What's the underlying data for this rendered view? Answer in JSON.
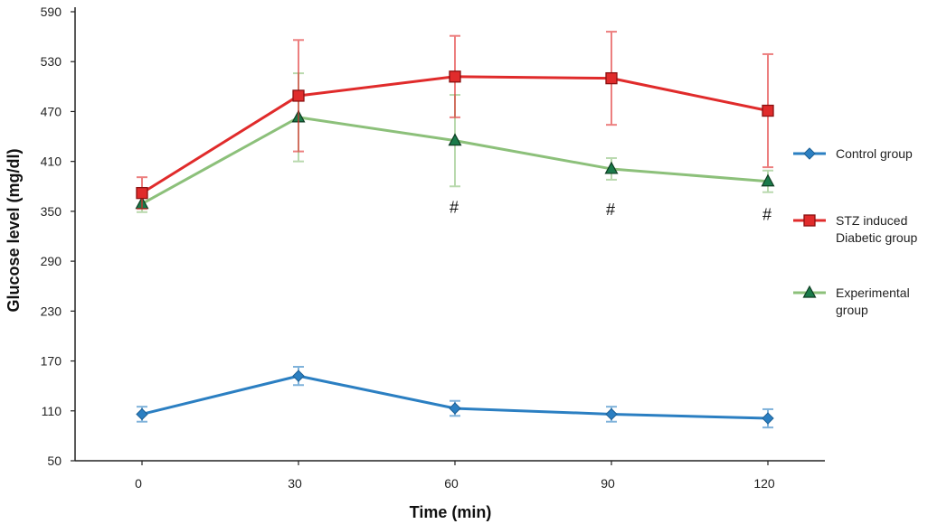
{
  "chart_data": {
    "type": "line",
    "title": "",
    "xlabel": "Time (min)",
    "ylabel": "Glucose level (mg/dl)",
    "x": [
      0,
      30,
      60,
      90,
      120
    ],
    "x_tick_labels": [
      "0",
      "30",
      "60",
      "90",
      "120"
    ],
    "ylim": [
      50,
      590
    ],
    "y_ticks": [
      50,
      110,
      170,
      230,
      290,
      350,
      410,
      470,
      530,
      590
    ],
    "y_tick_labels": [
      "50",
      "110",
      "170",
      "230",
      "290",
      "350",
      "410",
      "470",
      "530",
      "590"
    ],
    "grid": false,
    "legend_position": "right",
    "series": [
      {
        "name": "Control group",
        "name_lines": [
          "Control group"
        ],
        "marker": "diamond",
        "color": "#2b7fc2",
        "values": [
          106,
          152,
          113,
          106,
          101
        ],
        "errors": [
          9,
          11,
          9,
          9,
          11
        ]
      },
      {
        "name": "STZ induced Diabetic group",
        "name_lines": [
          "STZ induced",
          "Diabetic group"
        ],
        "marker": "square",
        "color": "#e02b2b",
        "values": [
          372,
          489,
          512,
          510,
          471
        ],
        "errors": [
          19,
          67,
          49,
          56,
          68
        ]
      },
      {
        "name": "Experimental group",
        "name_lines": [
          "Experimental",
          "group"
        ],
        "marker": "triangle",
        "color": "#8cc07a",
        "values": [
          359,
          463,
          435,
          401,
          386
        ],
        "errors": [
          10,
          53,
          55,
          13,
          13
        ]
      }
    ],
    "annotations": [
      {
        "text": "#",
        "x": 60,
        "y": 355
      },
      {
        "text": "#",
        "x": 90,
        "y": 352
      },
      {
        "text": "#",
        "x": 120,
        "y": 346
      }
    ]
  }
}
